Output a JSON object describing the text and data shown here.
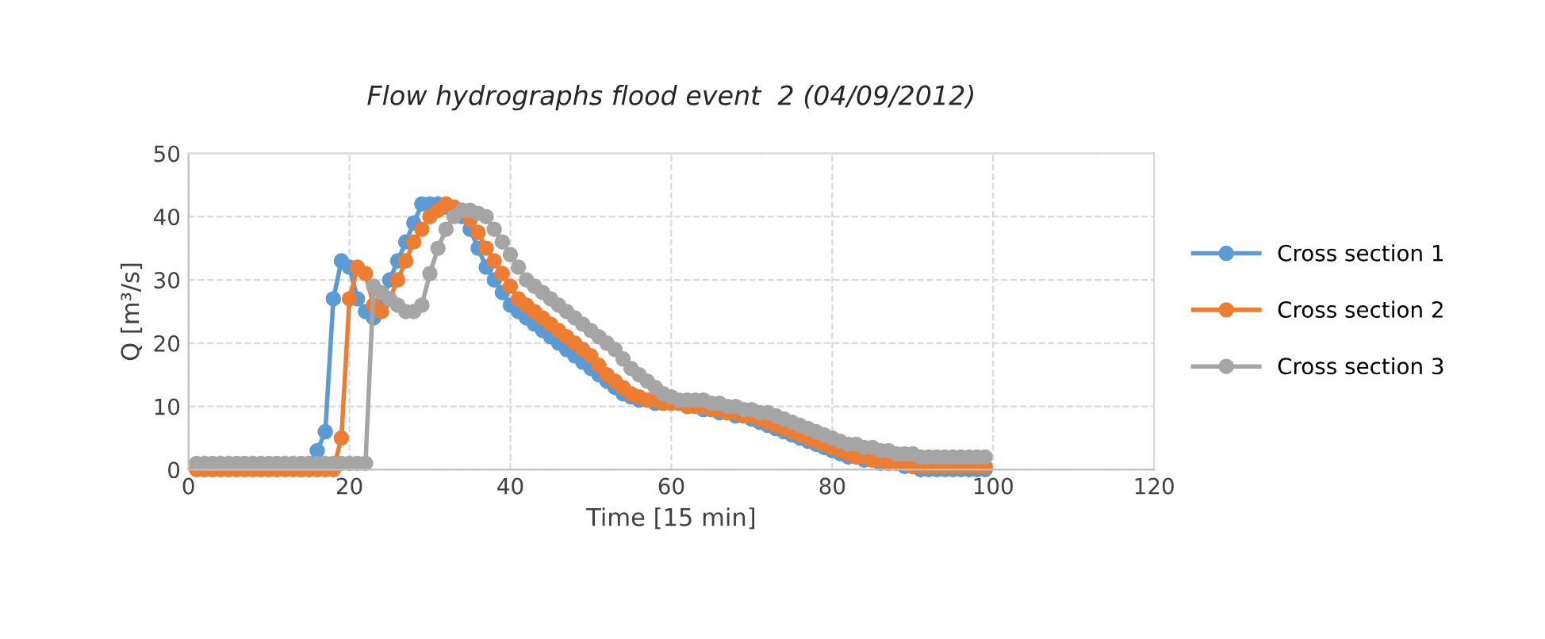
{
  "chart_data": {
    "type": "line",
    "title": "Flow hydrographs flood event  2 (04/09/2012)",
    "xlabel": "Time [15 min]",
    "ylabel": "Q [m³/s]",
    "x": [
      1,
      2,
      3,
      4,
      5,
      6,
      7,
      8,
      9,
      10,
      11,
      12,
      13,
      14,
      15,
      16,
      17,
      18,
      19,
      20,
      21,
      22,
      23,
      24,
      25,
      26,
      27,
      28,
      29,
      30,
      31,
      32,
      33,
      34,
      35,
      36,
      37,
      38,
      39,
      40,
      41,
      42,
      43,
      44,
      45,
      46,
      47,
      48,
      49,
      50,
      51,
      52,
      53,
      54,
      55,
      56,
      57,
      58,
      59,
      60,
      61,
      62,
      63,
      64,
      65,
      66,
      67,
      68,
      69,
      70,
      71,
      72,
      73,
      74,
      75,
      76,
      77,
      78,
      79,
      80,
      81,
      82,
      83,
      84,
      85,
      86,
      87,
      88,
      89,
      90,
      91,
      92,
      93,
      94,
      95,
      96,
      97,
      98,
      99
    ],
    "series": [
      {
        "name": "Cross section 1",
        "color": "#5b9bd5",
        "values": [
          null,
          null,
          null,
          null,
          null,
          null,
          null,
          null,
          null,
          null,
          null,
          null,
          null,
          0,
          1,
          3,
          6,
          27,
          33,
          32,
          27,
          25,
          24,
          26,
          30,
          33,
          36,
          39,
          42,
          42,
          42,
          41.5,
          41,
          40,
          38,
          35,
          32,
          30,
          28,
          26,
          25,
          24,
          23,
          22,
          21,
          20,
          19,
          18,
          17,
          16,
          15,
          14,
          13,
          12,
          11.5,
          11,
          11,
          10.5,
          10.5,
          10.5,
          10.5,
          10,
          10,
          9.5,
          9.5,
          9,
          9,
          8.5,
          8.5,
          8,
          7.5,
          7,
          6.5,
          6,
          5.5,
          5,
          4.5,
          4,
          3.5,
          3,
          2.5,
          2,
          2,
          1.5,
          1.5,
          1,
          1,
          1,
          0.5,
          0.5,
          0,
          0,
          0,
          0,
          0,
          0,
          0,
          0,
          0
        ]
      },
      {
        "name": "Cross section 2",
        "color": "#ed7d31",
        "values": [
          0,
          0,
          0,
          0,
          0,
          0,
          0,
          0,
          0,
          0,
          0,
          0,
          0,
          0,
          0,
          0,
          0,
          0,
          5,
          27,
          32,
          31,
          26,
          25,
          27,
          30,
          33,
          36,
          38,
          40,
          41,
          42,
          41.5,
          41,
          39.5,
          37.5,
          35,
          33,
          31,
          29,
          27,
          26,
          25,
          24,
          23,
          22,
          21,
          20,
          19,
          18,
          16.5,
          15,
          14,
          13,
          12,
          11.5,
          11,
          11,
          10.5,
          10.5,
          10.5,
          10,
          10,
          10,
          9.5,
          9.5,
          9,
          9,
          8.5,
          8.5,
          8,
          7.5,
          7,
          6.5,
          6,
          5.5,
          5,
          4.5,
          4,
          3.5,
          3,
          2.5,
          2,
          2,
          1.5,
          1.5,
          1,
          1,
          1,
          0.5,
          0.5,
          0.5,
          0.5,
          0.5,
          0.5,
          0.5,
          0.5,
          0.5,
          0.5
        ]
      },
      {
        "name": "Cross section 3",
        "color": "#a5a5a5",
        "values": [
          1,
          1,
          1,
          1,
          1,
          1,
          1,
          1,
          1,
          1,
          1,
          1,
          1,
          1,
          1,
          1,
          1,
          1,
          1,
          1,
          1,
          1,
          29,
          28,
          27,
          26,
          25,
          25,
          26,
          31,
          35,
          38,
          40,
          41,
          41,
          40.5,
          40,
          38,
          36,
          34,
          32,
          30,
          29,
          28,
          27,
          26,
          25,
          24,
          23,
          22,
          21,
          20,
          19,
          17.5,
          16,
          15,
          14,
          13,
          12,
          11.5,
          11,
          11,
          11,
          11,
          10.5,
          10.5,
          10,
          10,
          9.5,
          9.5,
          9,
          9,
          8.5,
          8,
          7.5,
          7,
          6.5,
          6,
          5.5,
          5,
          4.5,
          4,
          4,
          3.5,
          3.5,
          3,
          3,
          2.5,
          2.5,
          2.5,
          2,
          2,
          2,
          2,
          2,
          2,
          2,
          2,
          2
        ]
      }
    ],
    "xlim": [
      0,
      120
    ],
    "xticks": [
      0,
      20,
      40,
      60,
      80,
      100,
      120
    ],
    "ylim": [
      0,
      50
    ],
    "yticks": [
      0,
      10,
      20,
      30,
      40,
      50
    ],
    "grid": true,
    "legend": "right",
    "marker": "circle",
    "line_style": "solid"
  }
}
